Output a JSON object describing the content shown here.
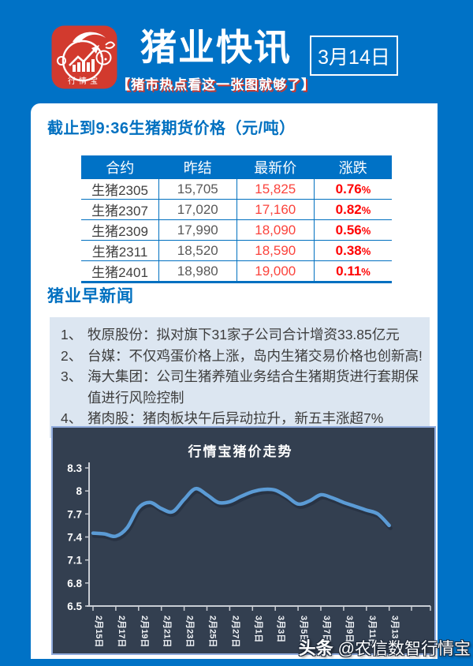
{
  "header": {
    "logo_text": "行情宝",
    "logo_icon": "pig-chart-logo",
    "title": "猪业快讯",
    "date": "3月14日",
    "subtitle": "【猪市热点看这一张图就够了】"
  },
  "futures": {
    "heading": "截止到9:36生猪期货价格（元/吨）",
    "table": {
      "columns": [
        "合约",
        "昨结",
        "最新价",
        "涨跌"
      ],
      "rows": [
        {
          "contract": "生猪2305",
          "prev": "15,705",
          "latest": "15,825",
          "change": "0.76",
          "unit": "%"
        },
        {
          "contract": "生猪2307",
          "prev": "17,020",
          "latest": "17,160",
          "change": "0.82",
          "unit": "%"
        },
        {
          "contract": "生猪2309",
          "prev": "17,990",
          "latest": "18,090",
          "change": "0.56",
          "unit": "%"
        },
        {
          "contract": "生猪2311",
          "prev": "18,520",
          "latest": "18,590",
          "change": "0.38",
          "unit": "%"
        },
        {
          "contract": "生猪2401",
          "prev": "18,980",
          "latest": "19,000",
          "change": "0.11",
          "unit": "%"
        }
      ]
    }
  },
  "news": {
    "heading": "猪业早新闻",
    "items": [
      {
        "no": "1、",
        "text": "牧原股份：拟对旗下31家子公司合计增资33.85亿元"
      },
      {
        "no": "2、",
        "text": "台媒：不仅鸡蛋价格上涨，岛内生猪交易价格也创新高!"
      },
      {
        "no": "3、",
        "text": "海大集团：公司生猪养殖业务结合生猪期货进行套期保值进行风险控制"
      },
      {
        "no": "4、",
        "text": "猪肉股：猪肉板块午后异动拉升，新五丰涨超7%"
      }
    ]
  },
  "chart_data": {
    "type": "line",
    "title": "行情宝猪价走势",
    "x_tick_labels": [
      "2月15日",
      "2月17日",
      "2月19日",
      "2月21日",
      "2月23日",
      "2月25日",
      "2月27日",
      "3月1日",
      "3月3日",
      "3月5日",
      "3月7日",
      "3月9日",
      "3月11日",
      "3月13日"
    ],
    "points_per_tick": 2,
    "values": [
      7.45,
      7.44,
      7.41,
      7.52,
      7.78,
      7.85,
      7.77,
      7.73,
      7.89,
      8.03,
      7.95,
      7.85,
      7.86,
      7.93,
      7.99,
      8.02,
      8.01,
      7.93,
      7.83,
      7.87,
      7.95,
      7.91,
      7.85,
      7.8,
      7.75,
      7.7,
      7.55
    ],
    "ylim": [
      6.5,
      8.3
    ],
    "yticks": [
      8.3,
      8.0,
      7.7,
      7.4,
      7.1,
      6.8,
      6.5
    ],
    "ytick_labels": [
      "8.3",
      "8",
      "7.7",
      "7.4",
      "7.1",
      "6.8",
      "6.5"
    ],
    "grid": false,
    "legend": "none",
    "line_color": "#5b9bd5",
    "bg_color": "#333f50"
  },
  "footer": {
    "brand": "头条",
    "handle": "@农信数智行情宝"
  },
  "colors": {
    "page_blue": "#0072c6",
    "heading_blue": "#0070c0",
    "logo_red": "#d23a2e",
    "news_bg": "#dce6f1",
    "chart_bg": "#333f50",
    "chart_border": "#8faadc",
    "chart_line": "#5b9bd5",
    "latest_price_red": "#fb433c",
    "change_red": "#ff0000"
  }
}
